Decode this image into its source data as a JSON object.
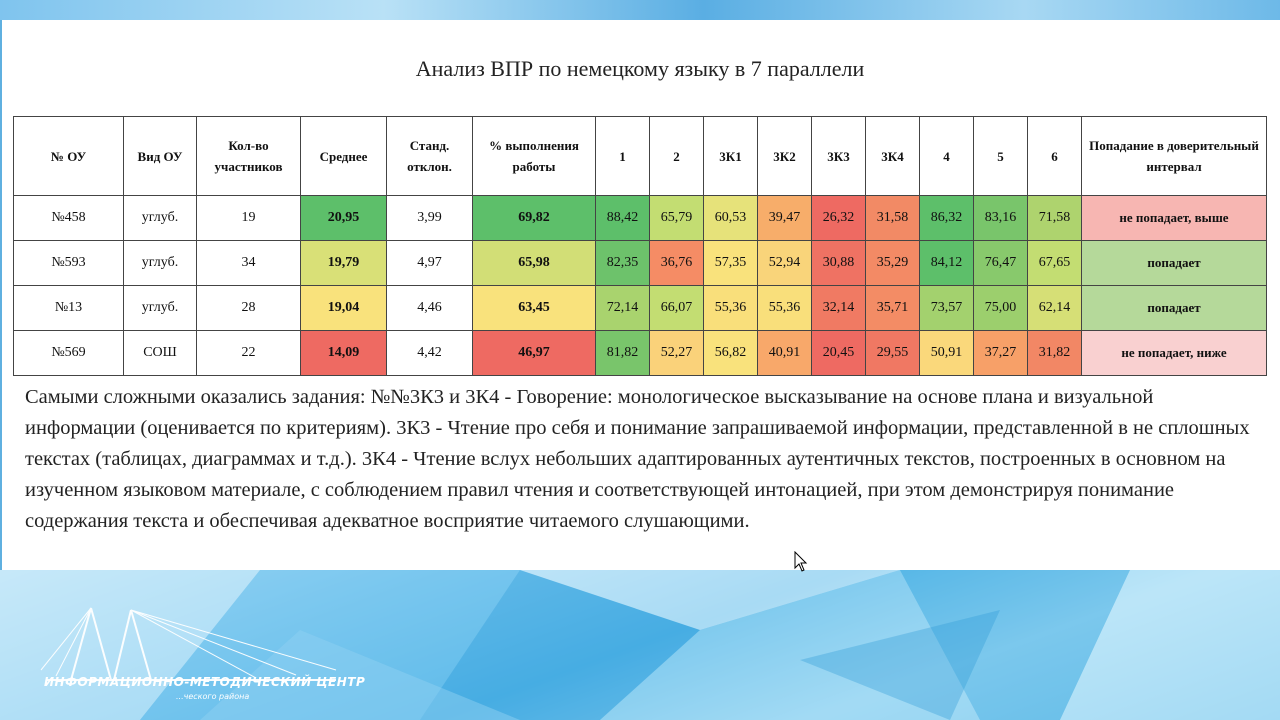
{
  "title": "Анализ ВПР по немецкому языку в 7 параллели",
  "headers": [
    "№ ОУ",
    "Вид ОУ",
    "Кол-во участников",
    "Среднее",
    "Станд. отклон.",
    "% выполнения работы",
    "1",
    "2",
    "3К1",
    "3К2",
    "3К3",
    "3К4",
    "4",
    "5",
    "6",
    "Попадание в доверительный интервал"
  ],
  "rows": [
    {
      "cells": [
        "№458",
        "углуб.",
        "19",
        "20,95",
        "3,99",
        "69,82",
        "88,42",
        "65,79",
        "60,53",
        "39,47",
        "26,32",
        "31,58",
        "86,32",
        "83,16",
        "71,58",
        "не попадает, выше"
      ]
    },
    {
      "cells": [
        "№593",
        "углуб.",
        "34",
        "19,79",
        "4,97",
        "65,98",
        "82,35",
        "36,76",
        "57,35",
        "52,94",
        "30,88",
        "35,29",
        "84,12",
        "76,47",
        "67,65",
        "попадает"
      ]
    },
    {
      "cells": [
        "№13",
        "углуб.",
        "28",
        "19,04",
        "4,46",
        "63,45",
        "72,14",
        "66,07",
        "55,36",
        "55,36",
        "32,14",
        "35,71",
        "73,57",
        "75,00",
        "62,14",
        "попадает"
      ]
    },
    {
      "cells": [
        "№569",
        "СОШ",
        "22",
        "14,09",
        "4,42",
        "46,97",
        "81,82",
        "52,27",
        "56,82",
        "40,91",
        "20,45",
        "29,55",
        "50,91",
        "37,27",
        "31,82",
        "не попадает, ниже"
      ]
    }
  ],
  "description": "Самыми сложными оказались задания: №№3К3 и 3К4 - Говорение: монологическое высказывание на основе плана и визуальной информации (оценивается по критериям). 3К3 - Чтение про себя и понимание запрашиваемой информации, представленной в не сплошных текстах (таблицах, диаграммах и т.д.). 3К4 - Чтение вслух небольших адаптированных аутентичных текстов, построенных в основном на изученном языковом материале, с соблюдением правил чтения и соответствующей интонацией, при этом демонстрируя понимание содержания текста и обеспечивая адекватное восприятие читаемого слушающими.",
  "logo": {
    "text": "ИНФОРМАЦИОННО-МЕТОДИЧЕСКИЙ ЦЕНТР",
    "subtext": "...ческого района"
  },
  "colors": {
    "green": "#5dbf6a",
    "yellow_green": "#c3dd72",
    "yellow": "#f9e27c",
    "orange": "#f7ad6a",
    "red": "#ee6a62",
    "status_ok": "#c6e0a8",
    "status_out": "#f7b6b2"
  }
}
